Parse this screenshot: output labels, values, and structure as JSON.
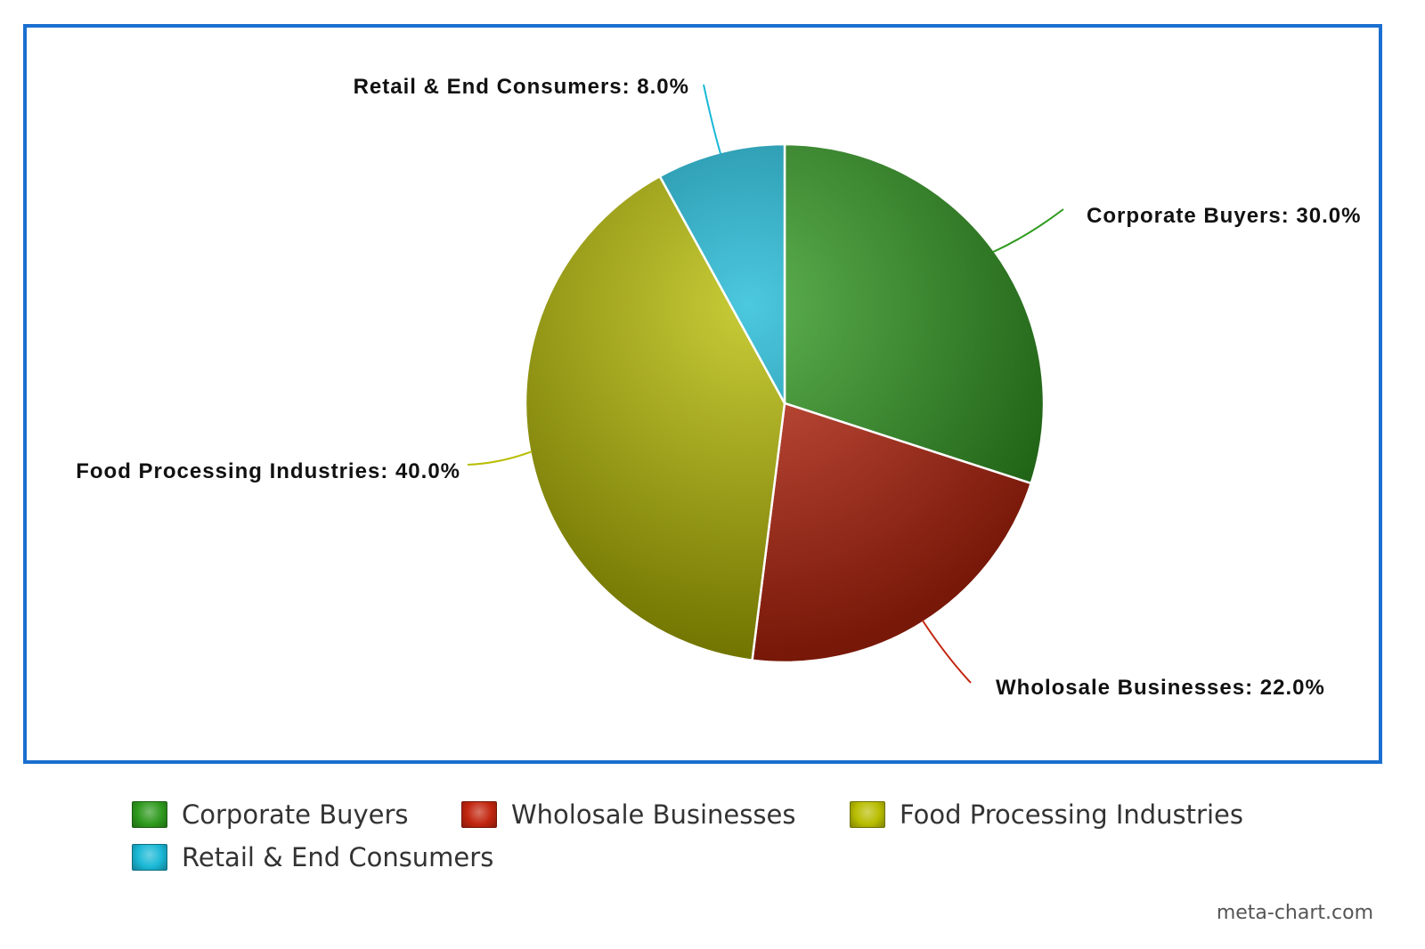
{
  "chart_data": {
    "type": "pie",
    "categories": [
      "Corporate Buyers",
      "Wholosale Businesses",
      "Food Processing Industries",
      "Retail & End Consumers"
    ],
    "values": [
      30.0,
      22.0,
      40.0,
      8.0
    ],
    "slice_labels": [
      "Corporate Buyers: 30.0%",
      "Wholosale Businesses: 22.0%",
      "Food Processing Industries: 40.0%",
      "Retail & End Consumers: 8.0%"
    ],
    "colors": [
      "#2f9a1e",
      "#c2260f",
      "#b8bd00",
      "#1ab8d6"
    ],
    "legend_placement": "bottom",
    "start_angle": "12 o'clock, clockwise"
  },
  "legend": {
    "items": [
      {
        "label": "Corporate Buyers",
        "color": "#2f9a1e"
      },
      {
        "label": "Wholosale Businesses",
        "color": "#c2260f"
      },
      {
        "label": "Food Processing Industries",
        "color": "#b8bd00"
      },
      {
        "label": "Retail & End Consumers",
        "color": "#1ab8d6"
      }
    ]
  },
  "credit": "meta-chart.com"
}
